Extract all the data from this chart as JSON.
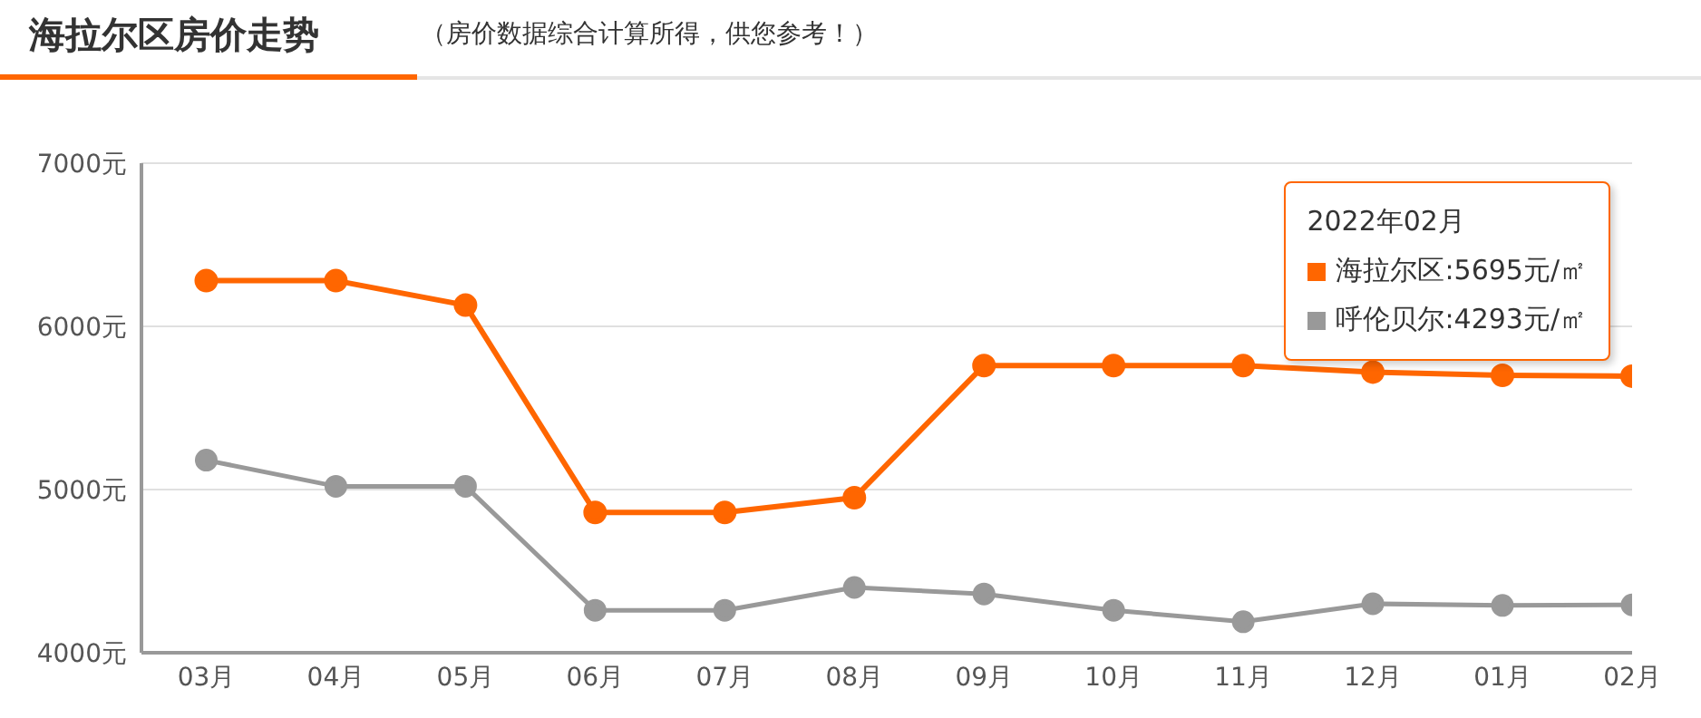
{
  "chart_data": {
    "type": "line",
    "title": "海拉尔区房价走势",
    "subtitle": "（房价数据综合计算所得，供您参考！）",
    "categories": [
      "03月",
      "04月",
      "05月",
      "06月",
      "07月",
      "08月",
      "09月",
      "10月",
      "11月",
      "12月",
      "01月",
      "02月"
    ],
    "series": [
      {
        "name": "海拉尔区",
        "color": "#ff6600",
        "values": [
          6280,
          6280,
          6130,
          4860,
          4860,
          4950,
          5760,
          5760,
          5760,
          5720,
          5700,
          5695
        ]
      },
      {
        "name": "呼伦贝尔",
        "color": "#999999",
        "values": [
          5180,
          5020,
          5020,
          4260,
          4260,
          4400,
          4360,
          4260,
          4190,
          4300,
          4290,
          4293
        ]
      }
    ],
    "ylim": [
      4000,
      7000
    ],
    "yticks": [
      {
        "value": 4000,
        "label": "4000元"
      },
      {
        "value": 5000,
        "label": "5000元"
      },
      {
        "value": 6000,
        "label": "6000元"
      },
      {
        "value": 7000,
        "label": "7000元"
      }
    ],
    "grid": "y",
    "legend": "top right",
    "marker": "circle",
    "line_style": "solid",
    "annotations": [
      "2022年02月",
      ":5695元/㎡",
      ":4293元/㎡"
    ]
  }
}
